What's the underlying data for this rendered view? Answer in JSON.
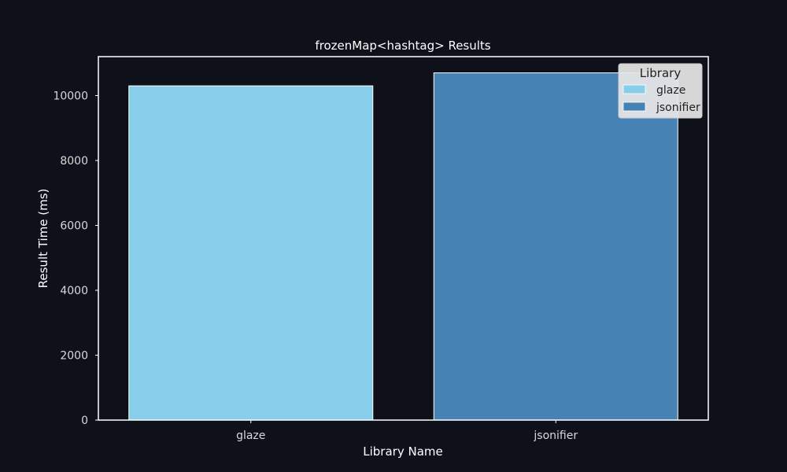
{
  "chart_data": {
    "type": "bar",
    "title": "frozenMap<hashtag> Results",
    "xlabel": "Library Name",
    "ylabel": "Result Time (ms)",
    "categories": [
      "glaze",
      "jsonifier"
    ],
    "values": [
      10300,
      10700
    ],
    "colors": [
      "#87ceeb",
      "#4682b4"
    ],
    "ylim": [
      0,
      11200
    ],
    "yticks": [
      0,
      2000,
      4000,
      6000,
      8000,
      10000
    ],
    "grid": false,
    "legend": {
      "title": "Library",
      "placement": "top-right",
      "entries": [
        "glaze",
        "jsonifier"
      ]
    }
  },
  "theme": {
    "background": "#0e1119",
    "axes_edge": "#ffffff",
    "bar_edge": "#ffffff"
  }
}
